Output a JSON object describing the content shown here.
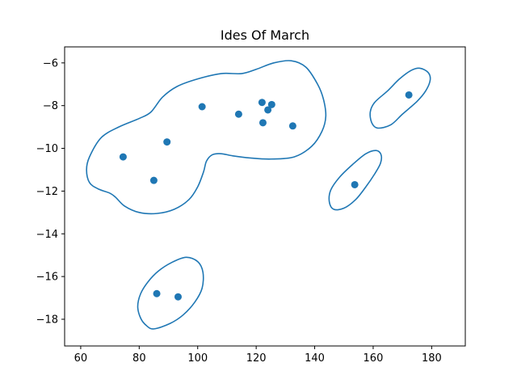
{
  "chart_data": {
    "type": "scatter",
    "title": "Ides Of March",
    "xlabel": "",
    "ylabel": "",
    "xlim": [
      54.5,
      191.5
    ],
    "ylim": [
      -19.25,
      -5.25
    ],
    "xticks": [
      60,
      80,
      100,
      120,
      140,
      160,
      180
    ],
    "yticks": [
      -6,
      -8,
      -10,
      -12,
      -14,
      -16,
      -18
    ],
    "grid": false,
    "color": "#1f77b4",
    "points": [
      {
        "x": 74.5,
        "y": -10.4
      },
      {
        "x": 85.0,
        "y": -11.5
      },
      {
        "x": 89.5,
        "y": -9.7
      },
      {
        "x": 101.5,
        "y": -8.05
      },
      {
        "x": 114.0,
        "y": -8.4
      },
      {
        "x": 122.0,
        "y": -7.85
      },
      {
        "x": 122.3,
        "y": -8.8
      },
      {
        "x": 124.0,
        "y": -8.2
      },
      {
        "x": 125.3,
        "y": -7.95
      },
      {
        "x": 132.5,
        "y": -8.95
      },
      {
        "x": 153.7,
        "y": -11.7
      },
      {
        "x": 172.2,
        "y": -7.5
      },
      {
        "x": 86.0,
        "y": -16.8
      },
      {
        "x": 93.3,
        "y": -16.95
      }
    ],
    "contours": [
      [
        [
          62,
          -11.0
        ],
        [
          63,
          -10.4
        ],
        [
          67,
          -9.5
        ],
        [
          73,
          -9.0
        ],
        [
          80,
          -8.6
        ],
        [
          84,
          -8.3
        ],
        [
          88,
          -7.6
        ],
        [
          93,
          -7.1
        ],
        [
          100,
          -6.75
        ],
        [
          108,
          -6.5
        ],
        [
          115,
          -6.5
        ],
        [
          120,
          -6.3
        ],
        [
          126,
          -6.0
        ],
        [
          132,
          -5.9
        ],
        [
          137,
          -6.2
        ],
        [
          141,
          -7.0
        ],
        [
          143,
          -7.7
        ],
        [
          143.8,
          -8.5
        ],
        [
          142.5,
          -9.2
        ],
        [
          139,
          -9.9
        ],
        [
          133,
          -10.4
        ],
        [
          125,
          -10.5
        ],
        [
          118,
          -10.45
        ],
        [
          112,
          -10.35
        ],
        [
          108,
          -10.25
        ],
        [
          105,
          -10.3
        ],
        [
          103,
          -10.6
        ],
        [
          102,
          -11.1
        ],
        [
          100,
          -11.8
        ],
        [
          97,
          -12.4
        ],
        [
          92,
          -12.85
        ],
        [
          86,
          -13.05
        ],
        [
          80,
          -13.0
        ],
        [
          75,
          -12.7
        ],
        [
          72,
          -12.3
        ],
        [
          70,
          -12.1
        ],
        [
          66,
          -11.9
        ],
        [
          63,
          -11.6
        ],
        [
          62,
          -11.0
        ]
      ],
      [
        [
          166,
          -8.9
        ],
        [
          170,
          -8.4
        ],
        [
          175,
          -7.8
        ],
        [
          178,
          -7.3
        ],
        [
          179.5,
          -6.8
        ],
        [
          178.8,
          -6.45
        ],
        [
          176,
          -6.25
        ],
        [
          173,
          -6.35
        ],
        [
          169,
          -6.75
        ],
        [
          165,
          -7.3
        ],
        [
          160.5,
          -7.85
        ],
        [
          159,
          -8.3
        ],
        [
          159.5,
          -8.8
        ],
        [
          161.5,
          -9.05
        ],
        [
          166,
          -8.9
        ]
      ],
      [
        [
          150,
          -12.8
        ],
        [
          154,
          -12.4
        ],
        [
          157.5,
          -11.8
        ],
        [
          160.5,
          -11.2
        ],
        [
          162.5,
          -10.7
        ],
        [
          162.7,
          -10.3
        ],
        [
          161,
          -10.1
        ],
        [
          157.5,
          -10.25
        ],
        [
          153,
          -10.75
        ],
        [
          148.5,
          -11.35
        ],
        [
          145.5,
          -11.95
        ],
        [
          145,
          -12.5
        ],
        [
          146.5,
          -12.85
        ],
        [
          150,
          -12.8
        ]
      ],
      [
        [
          85,
          -18.45
        ],
        [
          90.5,
          -18.2
        ],
        [
          95,
          -17.8
        ],
        [
          99,
          -17.2
        ],
        [
          101.5,
          -16.55
        ],
        [
          101.8,
          -15.8
        ],
        [
          100,
          -15.3
        ],
        [
          96,
          -15.1
        ],
        [
          91,
          -15.35
        ],
        [
          86.5,
          -15.75
        ],
        [
          83,
          -16.25
        ],
        [
          80.5,
          -16.8
        ],
        [
          79.5,
          -17.4
        ],
        [
          80.5,
          -17.95
        ],
        [
          82.5,
          -18.3
        ],
        [
          85,
          -18.45
        ]
      ]
    ]
  }
}
